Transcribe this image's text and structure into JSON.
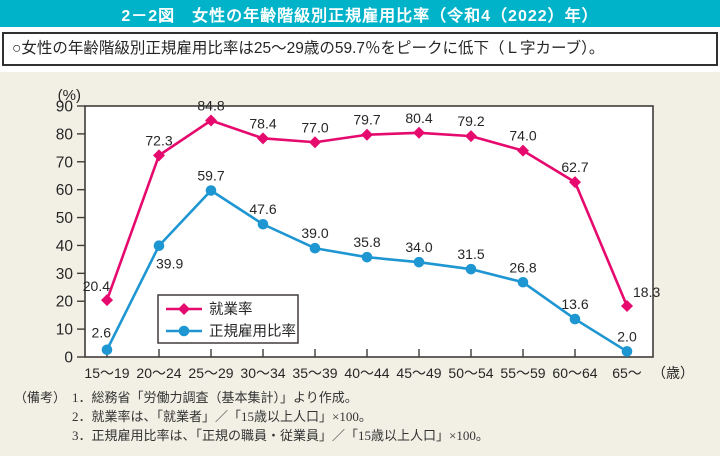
{
  "header": {
    "title": "2－2図　女性の年齢階級別正規雇用比率（令和4（2022）年）",
    "key_point": "○女性の年齢階級別正規雇用比率は25〜29歳の59.7％をピークに低下（Ｌ字カーブ）。"
  },
  "chart_data": {
    "type": "line",
    "title": "女性の年齢階級別正規雇用比率（令和4（2022）年）",
    "ylabel": "(%)",
    "ylim": [
      0,
      90
    ],
    "ytick_step": 10,
    "grid": false,
    "legend_position": "inside-lower-left",
    "categories": [
      "15〜19",
      "20〜24",
      "25〜29",
      "30〜34",
      "35〜39",
      "40〜44",
      "45〜49",
      "50〜54",
      "55〜59",
      "60〜64",
      "65〜"
    ],
    "x_axis_suffix": "（歳）",
    "series": [
      {
        "name": "就業率",
        "marker": "diamond",
        "color": "#e60a6e",
        "values": [
          20.4,
          72.3,
          84.8,
          78.4,
          77.0,
          79.7,
          80.4,
          79.2,
          74.0,
          62.7,
          18.3
        ]
      },
      {
        "name": "正規雇用比率",
        "marker": "circle",
        "color": "#1e96d2",
        "values": [
          2.6,
          39.9,
          59.7,
          47.6,
          39.0,
          35.8,
          34.0,
          31.5,
          26.8,
          13.6,
          2.0
        ]
      }
    ]
  },
  "notes": {
    "label": "（備考）",
    "items": [
      "1．総務省「労働力調査（基本集計）」より作成。",
      "2．就業率は、「就業者」／「15歳以上人口」×100。",
      "3．正規雇用比率は、「正規の職員・従業員」／「15歳以上人口」×100。"
    ]
  },
  "theme": {
    "header_bg": "#00b3c9",
    "header_text": "#ffffff",
    "panel_bg": "#f2f0e5",
    "plot_bg": "#ffffff",
    "border": "#403c3a",
    "text": "#262626",
    "series_employment": "#e60a6e",
    "series_regular": "#1e96d2"
  }
}
